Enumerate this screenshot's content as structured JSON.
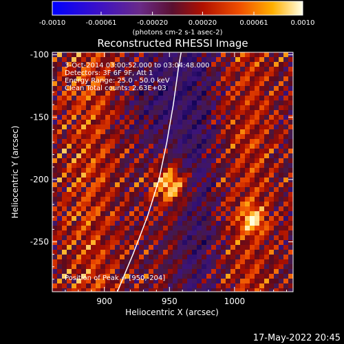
{
  "chart_data": {
    "type": "heatmap",
    "title": "Reconstructed RHESSI Image",
    "xlabel": "Heliocentric X (arcsec)",
    "ylabel": "Heliocentric Y (arcsec)",
    "xlim": [
      860,
      1045
    ],
    "ylim": [
      -290,
      -98
    ],
    "xticks": [
      900,
      950,
      1000
    ],
    "yticks": [
      -100,
      -150,
      -200,
      -250
    ],
    "colorbar": {
      "label": "(photons cm-2 s-1 asec-2)",
      "range": [
        -0.001,
        0.001
      ],
      "ticks": [
        "-0.0010",
        "-0.00061",
        "-0.00020",
        "0.00020",
        "0.00061",
        "0.0010"
      ]
    },
    "annotations": [
      "3-Oct-2014 03:00:52.000 to 03:04:48.000",
      "Detectors: 3F 6F 9F, Att 1",
      "Energy Range: 25.0 - 50.0 keV",
      "Clean  Total counts: 2.63E+03"
    ],
    "peak_label": "Position of Peak = [950,-204]",
    "peak": {
      "x": 950,
      "y": -204
    },
    "limb_curve": [
      [
        910,
        -290
      ],
      [
        922,
        -260
      ],
      [
        933,
        -230
      ],
      [
        942,
        -200
      ],
      [
        948,
        -170
      ],
      [
        953,
        -140
      ],
      [
        957,
        -110
      ],
      [
        959,
        -98
      ]
    ]
  },
  "footer": {
    "timestamp": "17-May-2022 20:45"
  }
}
